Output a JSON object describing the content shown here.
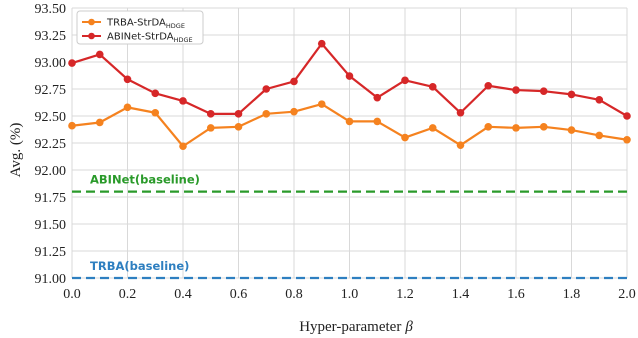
{
  "chart_data": {
    "type": "line",
    "title": "",
    "xlabel": "Hyper-parameter",
    "xlabel_symbol": "β",
    "ylabel": "Avg. (%)",
    "xlim": [
      0.0,
      2.0
    ],
    "ylim": [
      91.0,
      93.5
    ],
    "x_ticks": [
      "0.0",
      "0.2",
      "0.4",
      "0.6",
      "0.8",
      "1.0",
      "1.2",
      "1.4",
      "1.6",
      "1.8",
      "2.0"
    ],
    "y_ticks": [
      "91.00",
      "91.25",
      "91.50",
      "91.75",
      "92.00",
      "92.25",
      "92.50",
      "92.75",
      "93.00",
      "93.25",
      "93.50"
    ],
    "grid": true,
    "legend_position": "top-left",
    "x": [
      0.0,
      0.1,
      0.2,
      0.3,
      0.4,
      0.5,
      0.6,
      0.7,
      0.8,
      0.9,
      1.0,
      1.1,
      1.2,
      1.3,
      1.4,
      1.5,
      1.6,
      1.7,
      1.8,
      1.9,
      2.0
    ],
    "series": [
      {
        "name": "TRBA-StrDA",
        "name_subscript": "HDGE",
        "color": "#f5821f",
        "values": [
          92.41,
          92.44,
          92.58,
          92.53,
          92.22,
          92.39,
          92.4,
          92.52,
          92.54,
          92.61,
          92.45,
          92.45,
          92.3,
          92.39,
          92.23,
          92.4,
          92.39,
          92.4,
          92.37,
          92.32,
          92.28
        ]
      },
      {
        "name": "ABINet-StrDA",
        "name_subscript": "HDGE",
        "color": "#d62728",
        "values": [
          92.99,
          93.07,
          92.84,
          92.71,
          92.64,
          92.52,
          92.52,
          92.75,
          92.82,
          93.17,
          92.87,
          92.67,
          92.83,
          92.77,
          92.53,
          92.78,
          92.74,
          92.73,
          92.7,
          92.65,
          92.5
        ]
      }
    ],
    "baselines": [
      {
        "label": "ABINet(baseline)",
        "value": 91.8,
        "color": "#2a9a2a"
      },
      {
        "label": "TRBA(baseline)",
        "value": 91.0,
        "color": "#2e7fc0"
      }
    ]
  }
}
